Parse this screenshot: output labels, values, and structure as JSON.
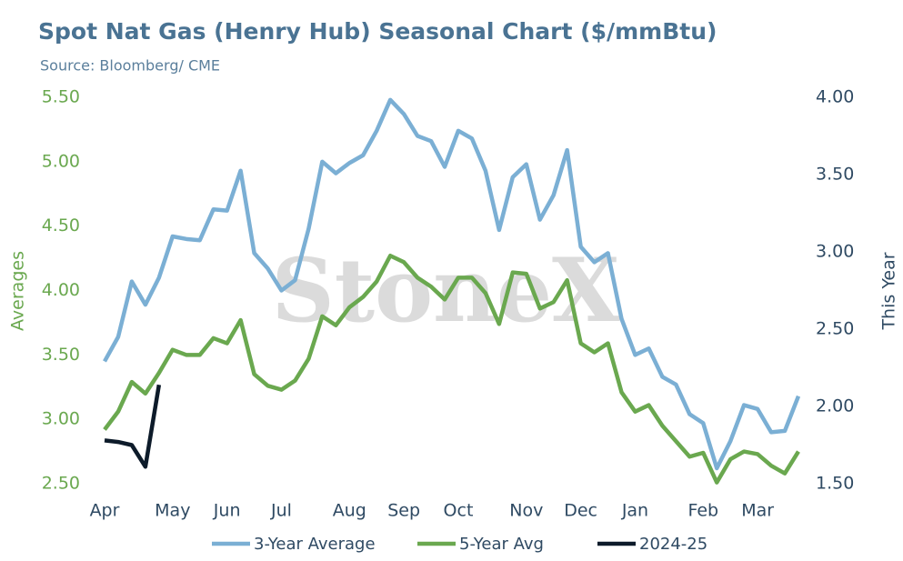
{
  "chart_data": {
    "type": "line",
    "title": "Spot Nat Gas (Henry Hub) Seasonal Chart ($/mmBtu)",
    "subtitle": "Source: Bloomberg/ CME",
    "watermark": "StoneX",
    "ylabel": "Averages",
    "y2label": "This Year",
    "x": [
      0,
      1,
      2,
      3,
      4,
      5,
      6,
      7,
      8,
      9,
      10,
      11,
      12,
      13,
      14,
      15,
      16,
      17,
      18,
      19,
      20,
      21,
      22,
      23,
      24,
      25,
      26,
      27,
      28,
      29,
      30,
      31,
      32,
      33,
      34,
      35,
      36,
      37,
      38,
      39,
      40,
      41,
      42,
      43,
      44,
      45,
      46,
      47,
      48,
      49,
      50,
      51
    ],
    "xlim": [
      0,
      51
    ],
    "xticks": [
      {
        "value": 0,
        "label": "Apr"
      },
      {
        "value": 5,
        "label": "May"
      },
      {
        "value": 9,
        "label": "Jun"
      },
      {
        "value": 13,
        "label": "Jul"
      },
      {
        "value": 18,
        "label": "Aug"
      },
      {
        "value": 22,
        "label": "Sep"
      },
      {
        "value": 26,
        "label": "Oct"
      },
      {
        "value": 31,
        "label": "Nov"
      },
      {
        "value": 35,
        "label": "Dec"
      },
      {
        "value": 39,
        "label": "Jan"
      },
      {
        "value": 44,
        "label": "Feb"
      },
      {
        "value": 48,
        "label": "Mar"
      }
    ],
    "ylim": [
      2.5,
      5.5
    ],
    "yticks": [
      {
        "value": 2.5,
        "label": "2.50"
      },
      {
        "value": 3,
        "label": "3.00"
      },
      {
        "value": 3.5,
        "label": "3.50"
      },
      {
        "value": 4,
        "label": "4.00"
      },
      {
        "value": 4.5,
        "label": "4.50"
      },
      {
        "value": 5,
        "label": "5.00"
      },
      {
        "value": 5.5,
        "label": "5.50"
      }
    ],
    "y2lim": [
      1.5,
      4.0
    ],
    "y2ticks": [
      {
        "value": 1.5,
        "label": "1.50"
      },
      {
        "value": 2,
        "label": "2.00"
      },
      {
        "value": 2.5,
        "label": "2.50"
      },
      {
        "value": 3,
        "label": "3.00"
      },
      {
        "value": 3.5,
        "label": "3.50"
      },
      {
        "value": 4,
        "label": "4.00"
      }
    ],
    "grid": false,
    "legend": "bottom",
    "series": [
      {
        "name": "3-Year Average",
        "color": "#7bafd4",
        "values": [
          3.45,
          3.64,
          4.07,
          3.89,
          4.1,
          4.42,
          4.4,
          4.39,
          4.63,
          4.62,
          4.93,
          4.29,
          4.17,
          4.0,
          4.08,
          4.48,
          5.0,
          4.91,
          4.99,
          5.05,
          5.24,
          5.48,
          5.37,
          5.2,
          5.16,
          4.96,
          5.24,
          5.18,
          4.93,
          4.47,
          4.88,
          4.98,
          4.55,
          4.74,
          5.09,
          4.34,
          4.22,
          4.29,
          3.78,
          3.5,
          3.55,
          3.33,
          3.27,
          3.04,
          2.97,
          2.62,
          2.83,
          3.11,
          3.08,
          2.9,
          2.91,
          3.18
        ]
      },
      {
        "name": "5-Year Avg",
        "color": "#6aa84f",
        "values": [
          2.92,
          3.06,
          3.29,
          3.2,
          3.36,
          3.54,
          3.5,
          3.5,
          3.63,
          3.59,
          3.77,
          3.35,
          3.26,
          3.23,
          3.3,
          3.47,
          3.8,
          3.73,
          3.87,
          3.95,
          4.07,
          4.27,
          4.22,
          4.1,
          4.03,
          3.93,
          4.1,
          4.1,
          3.98,
          3.74,
          4.14,
          4.13,
          3.86,
          3.91,
          4.08,
          3.59,
          3.52,
          3.59,
          3.21,
          3.06,
          3.11,
          2.95,
          2.83,
          2.71,
          2.74,
          2.51,
          2.69,
          2.75,
          2.73,
          2.64,
          2.58,
          2.75
        ]
      },
      {
        "name": "2024-25",
        "color": "#0d1b2a",
        "axis": "y2",
        "values": [
          1.78,
          1.77,
          1.75,
          1.61,
          2.14,
          null,
          null,
          null,
          null,
          null,
          null,
          null,
          null,
          null,
          null,
          null,
          null,
          null,
          null,
          null,
          null,
          null,
          null,
          null,
          null,
          null,
          null,
          null,
          null,
          null,
          null,
          null,
          null,
          null,
          null,
          null,
          null,
          null,
          null,
          null,
          null,
          null,
          null,
          null,
          null,
          null,
          null,
          null,
          null,
          null,
          null,
          null
        ]
      }
    ]
  }
}
